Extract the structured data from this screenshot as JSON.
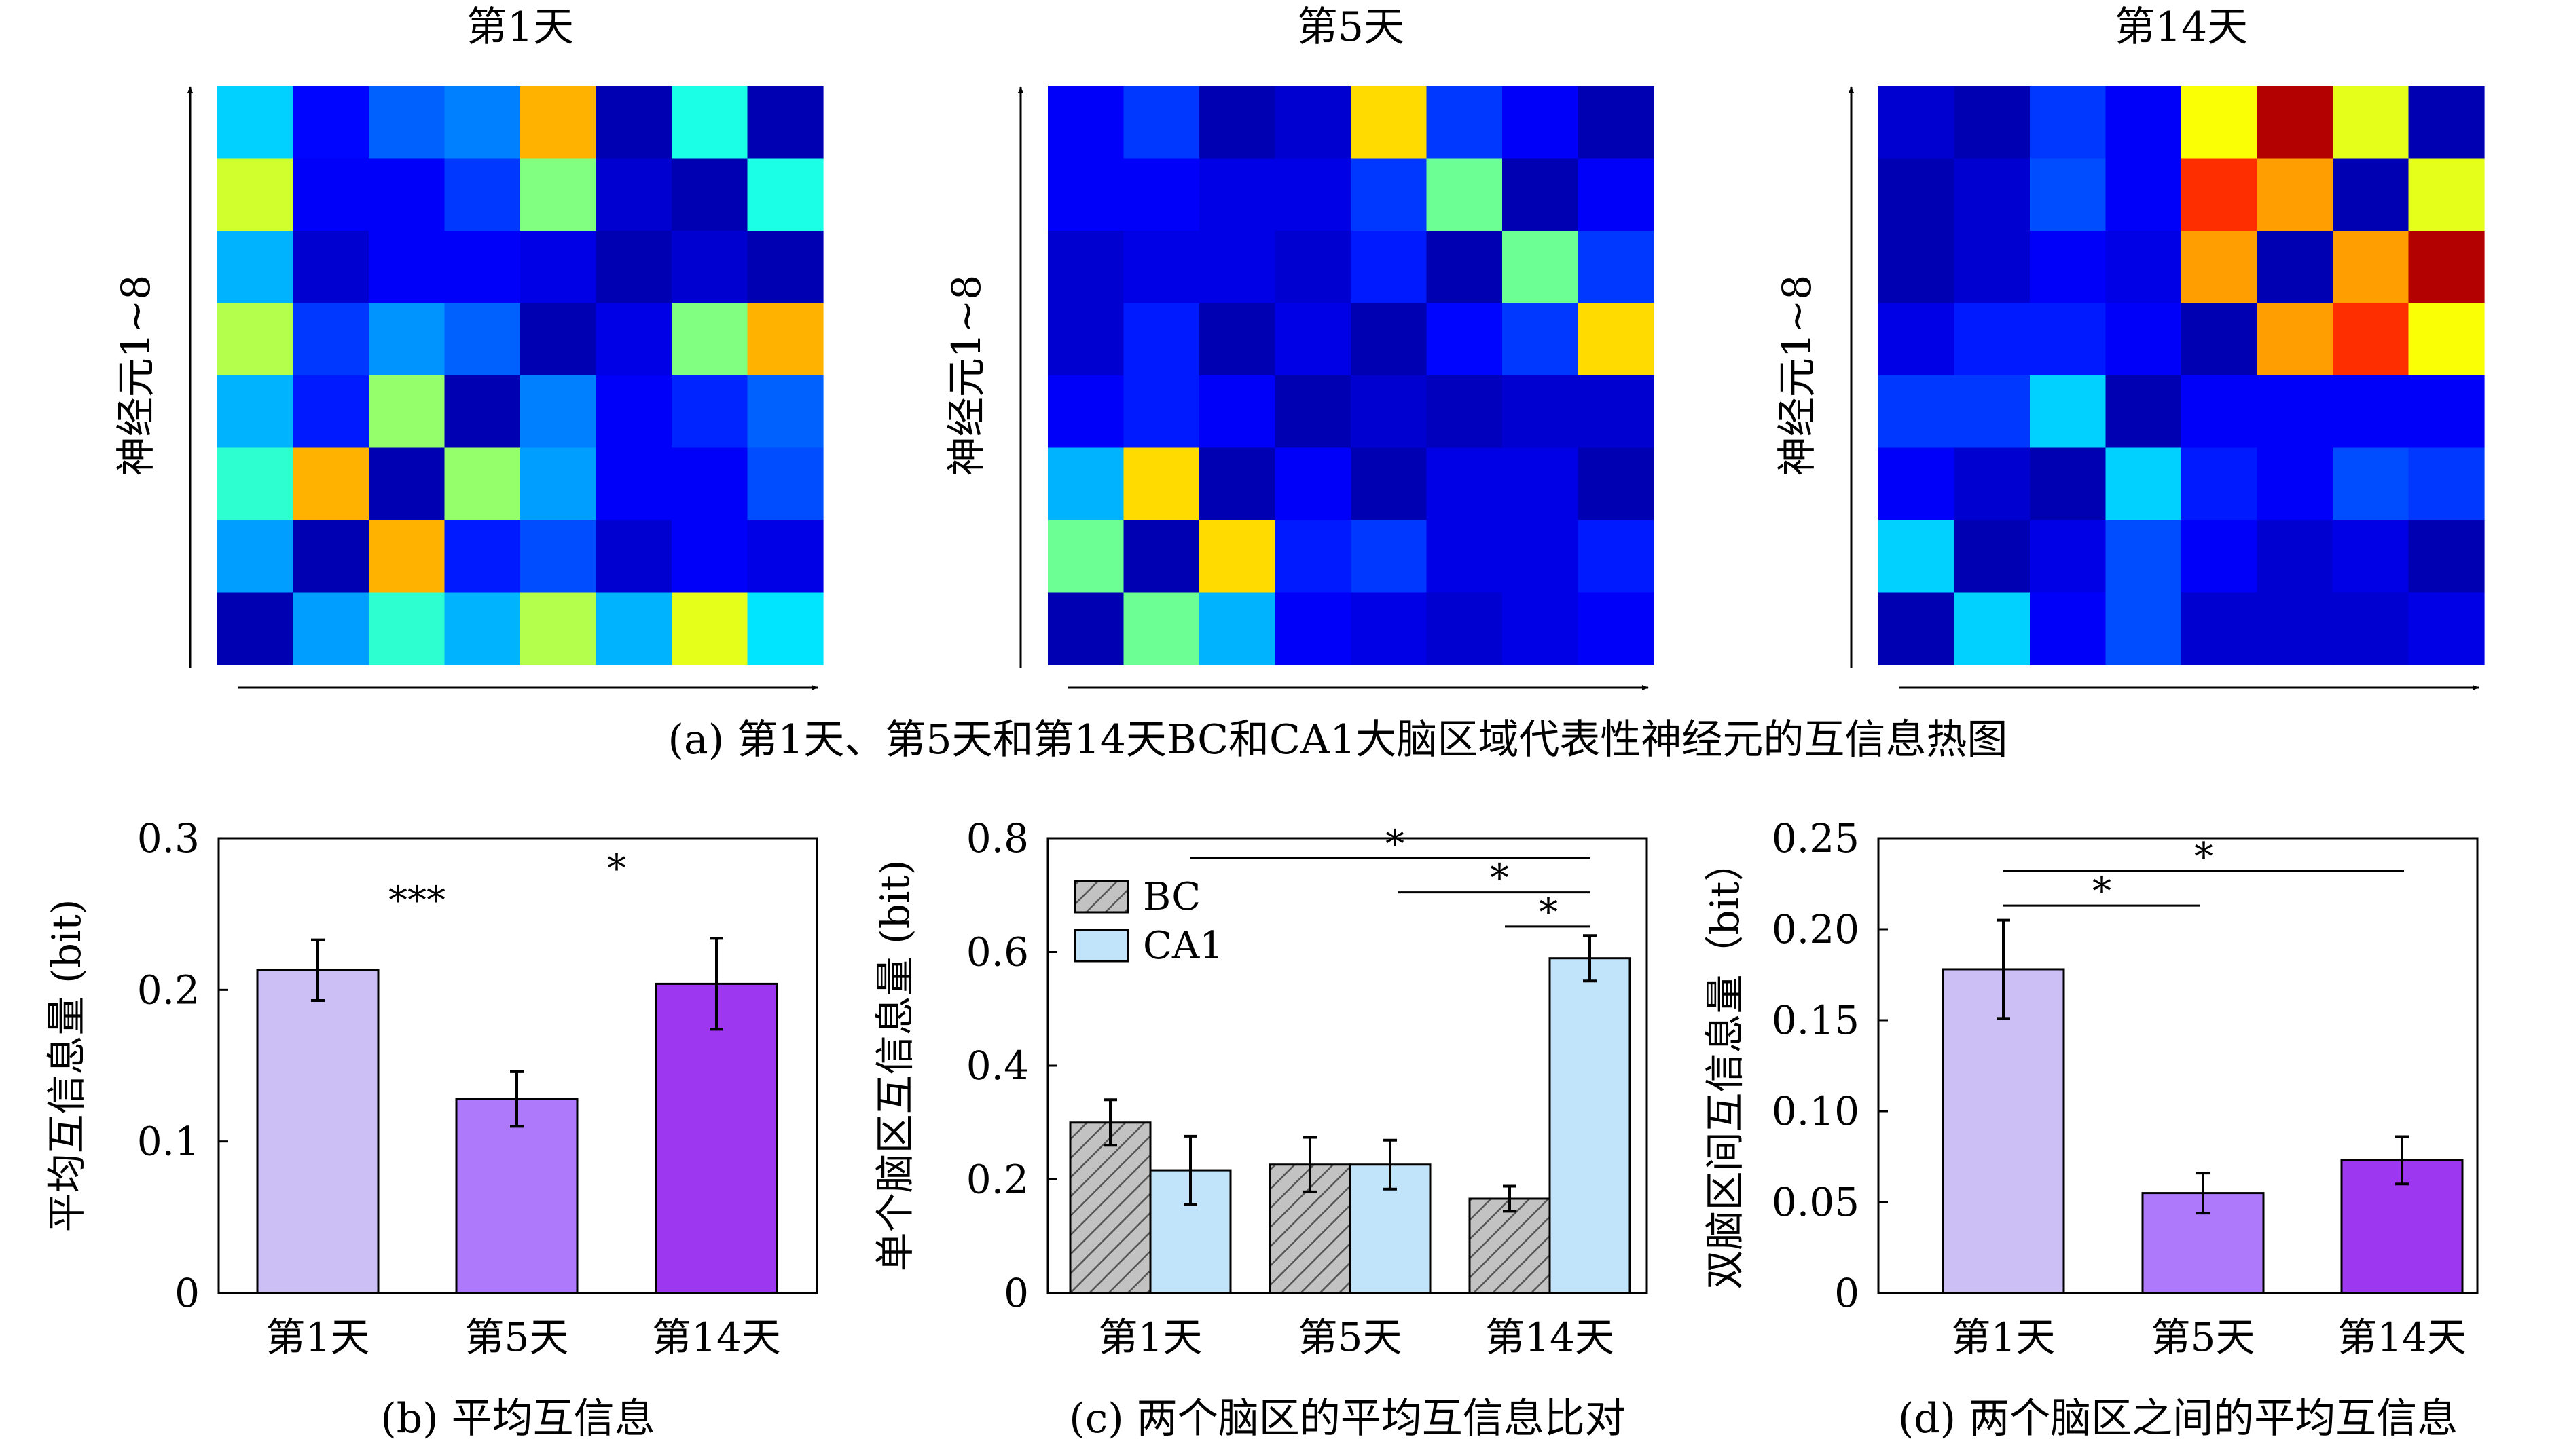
{
  "figure_caption_a": "(a) 第1天、第5天和第14天BC和CA1大脑区域代表性神经元的互信息热图",
  "chart_data": [
    {
      "type": "heatmap",
      "panel": "a",
      "title": "第1天",
      "ylabel": "神经元1~8",
      "colormap": "jet",
      "value_range": [
        0,
        1
      ],
      "values": [
        [
          0.33,
          0.13,
          0.22,
          0.25,
          0.7,
          0.05,
          0.4,
          0.05
        ],
        [
          0.58,
          0.12,
          0.12,
          0.18,
          0.5,
          0.08,
          0.05,
          0.4
        ],
        [
          0.3,
          0.08,
          0.12,
          0.12,
          0.1,
          0.05,
          0.08,
          0.05
        ],
        [
          0.55,
          0.18,
          0.27,
          0.22,
          0.05,
          0.1,
          0.5,
          0.7
        ],
        [
          0.3,
          0.15,
          0.52,
          0.05,
          0.25,
          0.12,
          0.16,
          0.22
        ],
        [
          0.42,
          0.7,
          0.05,
          0.52,
          0.28,
          0.12,
          0.12,
          0.2
        ],
        [
          0.28,
          0.05,
          0.7,
          0.15,
          0.2,
          0.08,
          0.12,
          0.1
        ],
        [
          0.05,
          0.28,
          0.42,
          0.3,
          0.55,
          0.3,
          0.6,
          0.35
        ]
      ]
    },
    {
      "type": "heatmap",
      "panel": "a",
      "title": "第5天",
      "ylabel": "神经元1~8",
      "colormap": "jet",
      "value_range": [
        0,
        1
      ],
      "values": [
        [
          0.12,
          0.18,
          0.05,
          0.08,
          0.66,
          0.18,
          0.12,
          0.05
        ],
        [
          0.12,
          0.12,
          0.1,
          0.1,
          0.18,
          0.48,
          0.05,
          0.12
        ],
        [
          0.08,
          0.1,
          0.1,
          0.08,
          0.15,
          0.05,
          0.48,
          0.18
        ],
        [
          0.08,
          0.15,
          0.05,
          0.1,
          0.05,
          0.13,
          0.18,
          0.66
        ],
        [
          0.12,
          0.15,
          0.12,
          0.05,
          0.08,
          0.06,
          0.08,
          0.08
        ],
        [
          0.3,
          0.66,
          0.05,
          0.12,
          0.05,
          0.1,
          0.1,
          0.05
        ],
        [
          0.48,
          0.05,
          0.66,
          0.15,
          0.18,
          0.1,
          0.1,
          0.15
        ],
        [
          0.05,
          0.48,
          0.3,
          0.12,
          0.1,
          0.08,
          0.1,
          0.12
        ]
      ]
    },
    {
      "type": "heatmap",
      "panel": "a",
      "title": "第14天",
      "ylabel": "神经元1~8",
      "colormap": "jet",
      "value_range": [
        0,
        1
      ],
      "values": [
        [
          0.08,
          0.05,
          0.18,
          0.12,
          0.62,
          0.95,
          0.6,
          0.05
        ],
        [
          0.05,
          0.08,
          0.2,
          0.12,
          0.83,
          0.72,
          0.05,
          0.6
        ],
        [
          0.05,
          0.08,
          0.12,
          0.1,
          0.72,
          0.05,
          0.72,
          0.95
        ],
        [
          0.1,
          0.15,
          0.15,
          0.12,
          0.05,
          0.72,
          0.83,
          0.62
        ],
        [
          0.18,
          0.18,
          0.33,
          0.05,
          0.12,
          0.12,
          0.12,
          0.12
        ],
        [
          0.12,
          0.08,
          0.05,
          0.33,
          0.15,
          0.12,
          0.2,
          0.18
        ],
        [
          0.33,
          0.05,
          0.1,
          0.2,
          0.12,
          0.08,
          0.1,
          0.05
        ],
        [
          0.05,
          0.33,
          0.12,
          0.2,
          0.08,
          0.08,
          0.08,
          0.1
        ]
      ]
    },
    {
      "type": "bar",
      "panel": "b",
      "caption": "(b) 平均互信息",
      "ylabel": "平均互信息量 (bit)",
      "categories": [
        "第1天",
        "第5天",
        "第14天"
      ],
      "values": [
        0.213,
        0.128,
        0.204
      ],
      "errors": [
        0.02,
        0.018,
        0.03
      ],
      "colors": [
        "#cbbff5",
        "#ae79fb",
        "#9e37f0"
      ],
      "ylim": [
        0,
        0.3
      ],
      "yticks": [
        "0",
        "0.1",
        "0.2",
        "0.3"
      ],
      "significance": [
        {
          "label": "***",
          "x": 1,
          "y": 0.263
        },
        {
          "label": "*",
          "x": 2,
          "y": 0.284
        }
      ]
    },
    {
      "type": "bar",
      "panel": "c",
      "caption": "(c) 两个脑区的平均互信息比对",
      "ylabel": "单个脑区互信息量 (bit)",
      "categories": [
        "第1天",
        "第5天",
        "第14天"
      ],
      "series": [
        {
          "name": "BC",
          "values": [
            0.3,
            0.226,
            0.166
          ],
          "errors": [
            0.04,
            0.048,
            0.022
          ],
          "color": "#c2c2c2",
          "hatch": true
        },
        {
          "name": "CA1",
          "values": [
            0.216,
            0.226,
            0.589
          ],
          "errors": [
            0.06,
            0.043,
            0.04
          ],
          "color": "#c2e4fa",
          "hatch": false
        }
      ],
      "ylim": [
        0,
        0.8
      ],
      "yticks": [
        "0",
        "0.2",
        "0.4",
        "0.6",
        "0.8"
      ],
      "legend_position": "top-left",
      "significance": [
        {
          "label": "*",
          "x1": 0.2,
          "x2": 2.2,
          "y": 0.765
        },
        {
          "label": "*",
          "x1": 1.25,
          "x2": 2.2,
          "y": 0.705
        },
        {
          "label": "*",
          "x1": 1.8,
          "x2": 2.2,
          "y": 0.645
        }
      ]
    },
    {
      "type": "bar",
      "panel": "d",
      "caption": "(d) 两个脑区之间的平均互信息",
      "ylabel": "双脑区间互信息量（bit）",
      "categories": [
        "第1天",
        "第5天",
        "第14天"
      ],
      "values": [
        0.178,
        0.055,
        0.073
      ],
      "errors": [
        0.027,
        0.011,
        0.013
      ],
      "colors": [
        "#cbbff5",
        "#ae79fb",
        "#9e37f0"
      ],
      "ylim": [
        0,
        0.25
      ],
      "yticks": [
        "0",
        "0.05",
        "0.10",
        "0.15",
        "0.20",
        "0.25"
      ],
      "significance": [
        {
          "label": "*",
          "x1": 0,
          "x2": 1,
          "y": 0.213
        },
        {
          "label": "*",
          "x1": 0,
          "x2": 2,
          "y": 0.232
        }
      ]
    }
  ]
}
